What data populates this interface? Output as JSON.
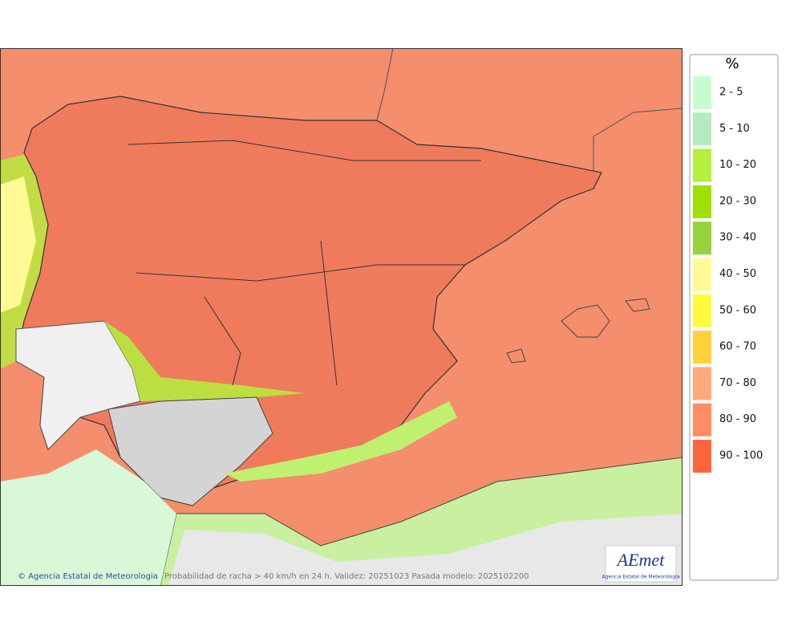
{
  "legend": {
    "title": "%",
    "items": [
      {
        "label": "2 - 5",
        "color": "#c8fcd0"
      },
      {
        "label": "5 - 10",
        "color": "#b4ecc0"
      },
      {
        "label": "10 - 20",
        "color": "#b4f03c"
      },
      {
        "label": "20 - 30",
        "color": "#a0e000"
      },
      {
        "label": "30 - 40",
        "color": "#96d23c"
      },
      {
        "label": "40 - 50",
        "color": "#fffa96"
      },
      {
        "label": "50 - 60",
        "color": "#fffa3c"
      },
      {
        "label": "60 - 70",
        "color": "#ffd23c"
      },
      {
        "label": "70 - 80",
        "color": "#ffaa78"
      },
      {
        "label": "80 - 90",
        "color": "#ff8c64"
      },
      {
        "label": "90 - 100",
        "color": "#ff643c"
      }
    ]
  },
  "footer": {
    "credit": "© Agencia Estatal de Meteorologia",
    "caption": "Probabilidad de racha > 40 km/h en 24 h. Validez: 20251023 Pasada modelo: 2025102200"
  },
  "logo": {
    "name": "AEmet",
    "subtitle": "Agencia Estatal de Meteorología"
  }
}
